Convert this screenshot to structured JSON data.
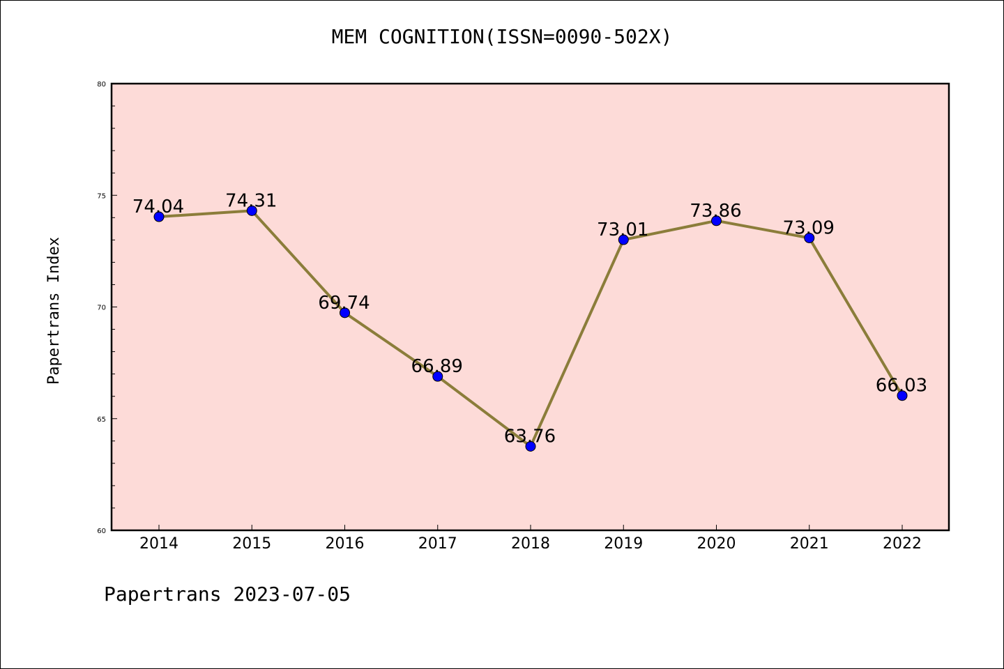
{
  "chart_data": {
    "type": "line",
    "title": "MEM COGNITION(ISSN=0090-502X)",
    "xlabel": "",
    "ylabel": "Papertrans Index",
    "categories": [
      "2014",
      "2015",
      "2016",
      "2017",
      "2018",
      "2019",
      "2020",
      "2021",
      "2022"
    ],
    "series": [
      {
        "values": [
          74.04,
          74.31,
          69.74,
          66.89,
          63.76,
          73.01,
          73.86,
          73.09,
          66.03
        ],
        "data_labels": [
          "74.04",
          "74.31",
          "69.74",
          "66.89",
          "63.76",
          "73.01",
          "73.86",
          "73.09",
          "66.03"
        ]
      }
    ],
    "ylim": [
      60,
      80
    ],
    "yticks": [
      "60",
      "65",
      "70",
      "75",
      "80"
    ],
    "grid": false,
    "colors": {
      "plot_background": "#fddbd8",
      "line": "#8b7d3a",
      "marker": "#0000ff"
    }
  },
  "footer": "Papertrans 2023-07-05"
}
